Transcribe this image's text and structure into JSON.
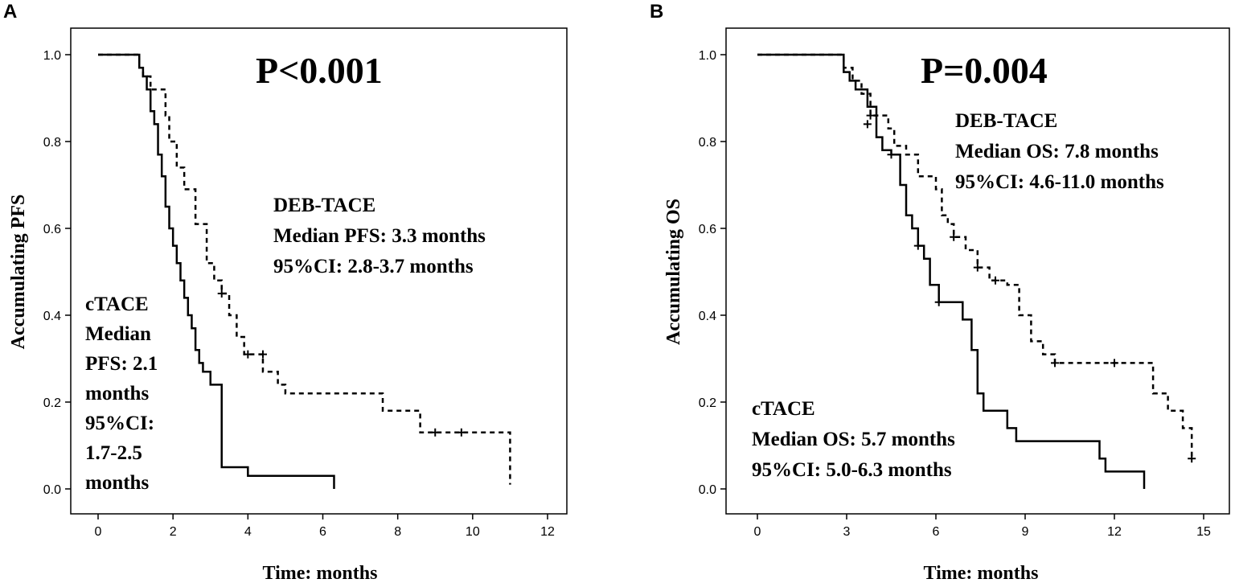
{
  "chart_data": [
    {
      "type": "line",
      "subtype": "kaplan-meier",
      "panel_label": "A",
      "xlabel": "Time: months",
      "ylabel": "Accumulating PFS",
      "xlim": [
        0,
        12
      ],
      "ylim": [
        0,
        1
      ],
      "xticks": [
        0,
        2,
        4,
        6,
        8,
        10,
        12
      ],
      "yticks": [
        "0.0",
        "0.2",
        "0.4",
        "0.6",
        "0.8",
        "1.0"
      ],
      "p_value": "P<0.001",
      "annotations": {
        "deb": [
          "DEB-TACE",
          "Median PFS: 3.3 months",
          "95%CI: 2.8-3.7 months"
        ],
        "ctace": [
          "cTACE",
          "Median",
          "PFS: 2.1",
          "months",
          "95%CI:",
          "1.7-2.5",
          "months"
        ]
      },
      "series": [
        {
          "name": "cTACE",
          "style": "solid",
          "x": [
            0,
            1.1,
            1.2,
            1.3,
            1.4,
            1.5,
            1.6,
            1.7,
            1.8,
            1.9,
            2.0,
            2.1,
            2.2,
            2.3,
            2.4,
            2.5,
            2.6,
            2.7,
            2.8,
            3.0,
            3.3,
            4.0,
            6.3
          ],
          "y": [
            1.0,
            0.97,
            0.95,
            0.92,
            0.87,
            0.84,
            0.77,
            0.72,
            0.65,
            0.6,
            0.56,
            0.52,
            0.48,
            0.44,
            0.4,
            0.37,
            0.32,
            0.29,
            0.27,
            0.24,
            0.05,
            0.03,
            0.0
          ],
          "censored": []
        },
        {
          "name": "DEB-TACE",
          "style": "dashed",
          "x": [
            0,
            1.1,
            1.2,
            1.4,
            1.8,
            1.9,
            2.1,
            2.3,
            2.6,
            2.9,
            3.1,
            3.3,
            3.5,
            3.7,
            3.9,
            4.4,
            4.8,
            5.0,
            7.6,
            8.6,
            11.0
          ],
          "y": [
            1.0,
            0.97,
            0.95,
            0.92,
            0.86,
            0.8,
            0.74,
            0.69,
            0.61,
            0.52,
            0.48,
            0.45,
            0.4,
            0.35,
            0.31,
            0.27,
            0.24,
            0.22,
            0.18,
            0.13,
            0.01
          ],
          "censored": [
            [
              3.3,
              0.45
            ],
            [
              4.0,
              0.31
            ],
            [
              4.4,
              0.31
            ],
            [
              9.0,
              0.13
            ],
            [
              9.7,
              0.13
            ]
          ]
        }
      ]
    },
    {
      "type": "line",
      "subtype": "kaplan-meier",
      "panel_label": "B",
      "xlabel": "Time: months",
      "ylabel": "Accumulating OS",
      "xlim": [
        0,
        15
      ],
      "ylim": [
        0,
        1
      ],
      "xticks": [
        0,
        3,
        6,
        9,
        12,
        15
      ],
      "yticks": [
        "0.0",
        "0.2",
        "0.4",
        "0.6",
        "0.8",
        "1.0"
      ],
      "p_value": "P=0.004",
      "annotations": {
        "deb": [
          "DEB-TACE",
          "Median OS: 7.8 months",
          "95%CI: 4.6-11.0 months"
        ],
        "ctace": [
          "cTACE",
          "Median OS: 5.7 months",
          "95%CI: 5.0-6.3 months"
        ]
      },
      "series": [
        {
          "name": "cTACE",
          "style": "solid",
          "x": [
            0,
            2.9,
            3.1,
            3.3,
            3.7,
            4.0,
            4.2,
            4.5,
            4.8,
            5.0,
            5.2,
            5.4,
            5.6,
            5.8,
            6.1,
            6.9,
            7.2,
            7.4,
            7.6,
            8.4,
            8.7,
            11.5,
            11.7,
            13.0
          ],
          "y": [
            1.0,
            0.96,
            0.94,
            0.92,
            0.88,
            0.81,
            0.78,
            0.77,
            0.7,
            0.63,
            0.6,
            0.56,
            0.53,
            0.47,
            0.43,
            0.39,
            0.32,
            0.22,
            0.18,
            0.14,
            0.11,
            0.07,
            0.04,
            0.0
          ],
          "censored": [
            [
              3.7,
              0.84
            ],
            [
              4.5,
              0.77
            ],
            [
              5.4,
              0.56
            ],
            [
              6.1,
              0.43
            ]
          ]
        },
        {
          "name": "DEB-TACE",
          "style": "dashed",
          "x": [
            0,
            2.9,
            3.2,
            3.5,
            3.8,
            4.4,
            4.6,
            5.0,
            5.4,
            6.0,
            6.2,
            6.4,
            6.6,
            7.0,
            7.4,
            7.8,
            8.4,
            8.8,
            9.2,
            9.6,
            10.0,
            13.3,
            13.8,
            14.3,
            14.6
          ],
          "y": [
            1.0,
            0.97,
            0.94,
            0.91,
            0.86,
            0.83,
            0.79,
            0.77,
            0.72,
            0.69,
            0.63,
            0.61,
            0.58,
            0.55,
            0.51,
            0.48,
            0.47,
            0.4,
            0.34,
            0.31,
            0.29,
            0.22,
            0.18,
            0.14,
            0.07
          ],
          "censored": [
            [
              3.8,
              0.86
            ],
            [
              6.6,
              0.58
            ],
            [
              7.4,
              0.51
            ],
            [
              8.0,
              0.48
            ],
            [
              10.0,
              0.29
            ],
            [
              12.0,
              0.29
            ],
            [
              14.6,
              0.07
            ]
          ]
        }
      ]
    }
  ]
}
